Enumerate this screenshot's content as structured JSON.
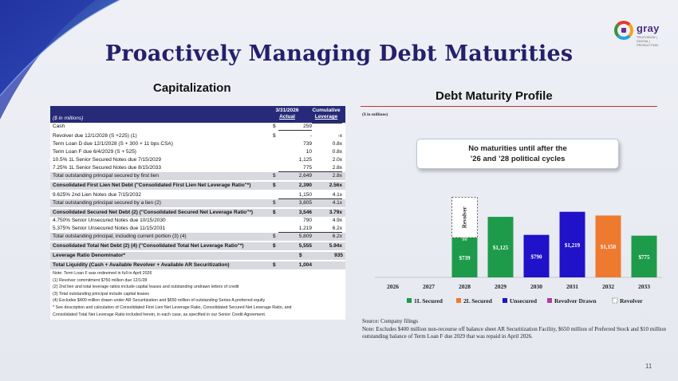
{
  "slide": {
    "title": "Proactively Managing Debt Maturities",
    "page_number": "11",
    "logo_text": "gray",
    "logo_subtext": "TELEVISION  |  DIGITAL  |  PRODUCTION"
  },
  "capitalization": {
    "title": "Capitalization",
    "header": {
      "units": "($ in millions)",
      "col1_line1": "3/31/2026",
      "col1_line2": "Actual",
      "col2_line1": "Cumulative",
      "col2_line2": "Leverage"
    },
    "rows": [
      {
        "label": "Cash",
        "dollar": "$",
        "value": "259",
        "lev": "",
        "style": "white ul"
      },
      {
        "gap": true
      },
      {
        "label": "Revolver due 12/1/2028 (S +225) (1)",
        "dollar": "$",
        "value": "-",
        "lev": "-x",
        "style": "white"
      },
      {
        "label": "Term Loan D due 12/1/2028 (S + 300 + 11 bps CSA)",
        "dollar": "",
        "value": "739",
        "lev": "0.8x",
        "style": "white"
      },
      {
        "label": "Term Loan F due 6/4/2029 (S + 525)",
        "dollar": "",
        "value": "10",
        "lev": "0.8x",
        "style": "white"
      },
      {
        "label": "10.5% 1L Senior Secured Notes due 7/15/2029",
        "dollar": "",
        "value": "1,125",
        "lev": "2.0x",
        "style": "white"
      },
      {
        "label": "7.25% 1L Senior Secured Notes due 8/15/2033",
        "dollar": "",
        "value": "775",
        "lev": "2.8x",
        "style": "white ul"
      },
      {
        "label": "Total outstanding principal secured by first lien",
        "dollar": "$",
        "value": "2,649",
        "lev": "2.8x",
        "style": "grey"
      },
      {
        "gap": true
      },
      {
        "label": "Consolidated First Lien Net Debt (\"Consolidated First Lien Net Leverage Ratio\"*)",
        "dollar": "$",
        "value": "2,390",
        "lev": "2.56x",
        "style": "grey bold"
      },
      {
        "gap": true
      },
      {
        "label": "9.625% 2nd Lien Notes due 7/15/2032",
        "dollar": "",
        "value": "1,150",
        "lev": "4.1x",
        "style": "white ul"
      },
      {
        "label": "Total outstanding principal secured by a lien (2)",
        "dollar": "$",
        "value": "3,805",
        "lev": "4.1x",
        "style": "grey"
      },
      {
        "gap": true
      },
      {
        "label": "Consolidated Secured Net Debt (2) (\"Consolidated Secured Net Leverage Ratio\"*)",
        "dollar": "$",
        "value": "3,546",
        "lev": "3.79x",
        "style": "grey bold"
      },
      {
        "label": "4.750% Senior Unsecured Notes due 10/15/2030",
        "dollar": "",
        "value": "790",
        "lev": "4.9x",
        "style": "white"
      },
      {
        "label": "5.375% Senior Unsecured Notes due 11/15/2031",
        "dollar": "",
        "value": "1,219",
        "lev": "6.2x",
        "style": "white ul"
      },
      {
        "label": "Total outstanding principal, including current portion (3) (4)",
        "dollar": "$",
        "value": "5,809",
        "lev": "6.2x",
        "style": "grey"
      },
      {
        "gap": true
      },
      {
        "label": "Consolidated Total Net Debt (2) (4) (\"Consolidated Total Net Leverage Ratio\"*)",
        "dollar": "$",
        "value": "5,555",
        "lev": "5.94x",
        "style": "grey bold"
      },
      {
        "gap": true
      },
      {
        "label": "Leverage Ratio Denominator*",
        "dollar": "$",
        "value": "935",
        "lev": "",
        "style": "hl bold"
      },
      {
        "gap": true
      },
      {
        "label": "Total Liquidity (Cash + Available Revolver + Available AR Securitization)",
        "dollar": "$",
        "value": "1,004",
        "lev": "",
        "style": "grey bold"
      }
    ],
    "notes": [
      "Note: Term Loan F was redeemed in full in April 2026",
      "(1) Revolver commitment $750 million due 12/1/28",
      "(2) 2nd lien and total leverage ratios include capital leases and outstanding undrawn letters of credit",
      "(3) Total outstanding principal include capital leases",
      "(4) Excludes $400 million drawn under AR Securitization and $650 million of outstanding Series A preferred equity",
      "* See description and calculation of Consolidated First Lien Net Leverage Ratio, Consolidated Secured Net Leverage Ratio, and",
      "   Consolidated Total Net Leverage Ratio included herein, in each case, as specified in our Senior Credit Agreement."
    ]
  },
  "debt_profile": {
    "title": "Debt Maturity Profile",
    "units": "($ in millions)",
    "callout_line1": "No maturities until after the",
    "callout_line2": "’26 and ’28 political cycles",
    "source_line1": "Source: Company filings",
    "source_line2": "Note: Excludes $400 million non-recourse off balance sheet AR Securitization Facility, $650 million of Preferred Stock and $10 million outstanding balance of Term Loan F due 2029 that was repaid in April 2026."
  },
  "chart_data": {
    "type": "bar",
    "stacked": true,
    "categories": [
      "2026",
      "2027",
      "2028",
      "2029",
      "2030",
      "2031",
      "2032",
      "2033"
    ],
    "series": [
      {
        "name": "1L Secured",
        "color": "#1e9b4a",
        "values": [
          0,
          0,
          739,
          1125,
          0,
          0,
          0,
          775
        ]
      },
      {
        "name": "2L Secured",
        "color": "#ee7a30",
        "values": [
          0,
          0,
          0,
          0,
          0,
          0,
          1150,
          0
        ]
      },
      {
        "name": "Unsecured",
        "color": "#1f12c8",
        "values": [
          0,
          0,
          0,
          0,
          790,
          1219,
          0,
          0
        ]
      },
      {
        "name": "Revolver Drawn",
        "color": "#b23aa6",
        "values": [
          0,
          0,
          0,
          0,
          0,
          0,
          0,
          0
        ]
      },
      {
        "name": "Revolver",
        "color": "#ffffff",
        "dashed": true,
        "values": [
          0,
          0,
          750,
          0,
          0,
          0,
          0,
          0
        ]
      }
    ],
    "data_labels": [
      "",
      "",
      "$739",
      "$1,125",
      "$790",
      "$1,219",
      "$1,150",
      "$775"
    ],
    "revolver_label": "Revolver",
    "revolver_value_label": "$0",
    "ylim": [
      0,
      1600
    ],
    "legend_position": "bottom"
  }
}
